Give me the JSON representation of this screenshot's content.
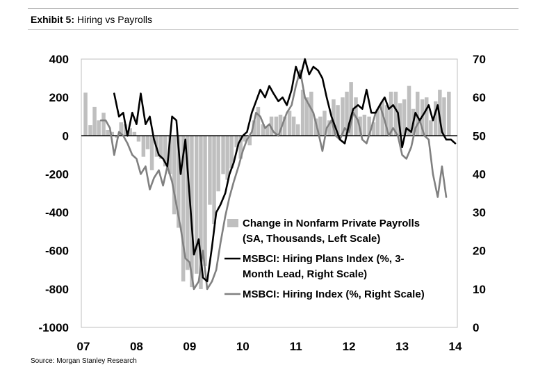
{
  "header": {
    "exhibit_label": "Exhibit 5:",
    "exhibit_title": "Hiring vs Payrolls"
  },
  "source": "Source: Morgan Stanley Research",
  "chart_data": {
    "type": "bar",
    "title": "Hiring vs Payrolls",
    "x_tick_labels": [
      "07",
      "08",
      "09",
      "10",
      "11",
      "12",
      "13",
      "14"
    ],
    "x_range": [
      2007.0,
      2014.0
    ],
    "y_left": {
      "ylim": [
        -1000,
        400
      ],
      "ticks": [
        "400",
        "200",
        "0",
        "-200",
        "-400",
        "-600",
        "-800",
        "-1000"
      ]
    },
    "y_right": {
      "ylim": [
        0,
        70
      ],
      "ticks": [
        "70",
        "60",
        "50",
        "40",
        "30",
        "20",
        "10",
        "0"
      ]
    },
    "grid": false,
    "legend_position": "bottom-right-inside",
    "colors": {
      "bars": "#bfbfbf",
      "hiring_plans": "#000000",
      "hiring_index": "#808080"
    },
    "series": [
      {
        "name": "Change in Nonfarm Private Payrolls (SA, Thousands, Left Scale)",
        "legend_lines": [
          "Change in Nonfarm Private Payrolls",
          "(SA, Thousands, Left Scale)"
        ],
        "type": "bar",
        "axis": "left",
        "x": [
          2007.04,
          2007.13,
          2007.21,
          2007.29,
          2007.38,
          2007.46,
          2007.54,
          2007.63,
          2007.71,
          2007.79,
          2007.88,
          2007.96,
          2008.04,
          2008.13,
          2008.21,
          2008.29,
          2008.38,
          2008.46,
          2008.54,
          2008.63,
          2008.71,
          2008.79,
          2008.88,
          2008.96,
          2009.04,
          2009.13,
          2009.21,
          2009.29,
          2009.38,
          2009.46,
          2009.54,
          2009.63,
          2009.71,
          2009.79,
          2009.88,
          2009.96,
          2010.04,
          2010.13,
          2010.21,
          2010.29,
          2010.38,
          2010.46,
          2010.54,
          2010.63,
          2010.71,
          2010.79,
          2010.88,
          2010.96,
          2011.04,
          2011.13,
          2011.21,
          2011.29,
          2011.38,
          2011.46,
          2011.54,
          2011.63,
          2011.71,
          2011.79,
          2011.88,
          2011.96,
          2012.04,
          2012.13,
          2012.21,
          2012.29,
          2012.38,
          2012.46,
          2012.54,
          2012.63,
          2012.71,
          2012.79,
          2012.88,
          2012.96,
          2013.04,
          2013.13,
          2013.21,
          2013.29,
          2013.38,
          2013.46,
          2013.54,
          2013.63,
          2013.71,
          2013.79,
          2013.88
        ],
        "values": [
          225,
          55,
          150,
          80,
          120,
          30,
          20,
          -10,
          70,
          60,
          40,
          20,
          -30,
          -110,
          -70,
          -180,
          -110,
          -120,
          -160,
          -200,
          -410,
          -480,
          -760,
          -700,
          -790,
          -720,
          -800,
          -680,
          -360,
          -460,
          -290,
          -200,
          -230,
          -170,
          -60,
          -120,
          -30,
          -50,
          80,
          150,
          60,
          50,
          100,
          100,
          110,
          100,
          130,
          100,
          60,
          240,
          200,
          230,
          90,
          100,
          130,
          80,
          190,
          160,
          200,
          230,
          280,
          200,
          100,
          110,
          100,
          70,
          140,
          180,
          160,
          230,
          230,
          170,
          190,
          260,
          140,
          230,
          190,
          200,
          80,
          180,
          240,
          200,
          230
        ]
      },
      {
        "name": "MSBCI: Hiring Plans Index (%, 3-Month Lead, Right Scale)",
        "legend_lines": [
          "MSBCI: Hiring Plans Index (%, 3-",
          "Month Lead, Right Scale)"
        ],
        "type": "line",
        "axis": "right",
        "x": [
          2007.58,
          2007.67,
          2007.75,
          2007.83,
          2007.92,
          2008.0,
          2008.08,
          2008.17,
          2008.25,
          2008.33,
          2008.42,
          2008.5,
          2008.58,
          2008.67,
          2008.75,
          2008.83,
          2008.92,
          2009.0,
          2009.08,
          2009.17,
          2009.25,
          2009.33,
          2009.42,
          2009.5,
          2009.58,
          2009.67,
          2009.75,
          2009.83,
          2009.92,
          2010.0,
          2010.08,
          2010.17,
          2010.25,
          2010.33,
          2010.42,
          2010.5,
          2010.58,
          2010.67,
          2010.75,
          2010.83,
          2010.92,
          2011.0,
          2011.08,
          2011.17,
          2011.25,
          2011.33,
          2011.42,
          2011.5,
          2011.58,
          2011.67,
          2011.75,
          2011.83,
          2011.92,
          2012.0,
          2012.08,
          2012.17,
          2012.25,
          2012.33,
          2012.42,
          2012.5,
          2012.58,
          2012.67,
          2012.75,
          2012.83,
          2012.92,
          2013.0,
          2013.08,
          2013.17,
          2013.25,
          2013.33,
          2013.42,
          2013.5,
          2013.58,
          2013.67,
          2013.75,
          2013.83,
          2013.92,
          2014.0
        ],
        "values": [
          61,
          55,
          56,
          50,
          56,
          53,
          61,
          53,
          55,
          49,
          45,
          44,
          42,
          55,
          54,
          40,
          49,
          34,
          19,
          23,
          13,
          12,
          21,
          30,
          32,
          35,
          40,
          43,
          48,
          50,
          51,
          56,
          59,
          62,
          60,
          63,
          61,
          59,
          60,
          58,
          62,
          68,
          65,
          70,
          66,
          68,
          67,
          65,
          60,
          55,
          52,
          49,
          48,
          53,
          57,
          58,
          57,
          62,
          56,
          56,
          58,
          60,
          57,
          58,
          56,
          47,
          52,
          51,
          56,
          54,
          56,
          58,
          54,
          58,
          51,
          49,
          49,
          48
        ]
      },
      {
        "name": "MSBCI: Hiring Index (%, Right Scale)",
        "legend_lines": [
          "MSBCI: Hiring Index (%, Right Scale)"
        ],
        "type": "line",
        "axis": "right",
        "x": [
          2007.33,
          2007.42,
          2007.5,
          2007.58,
          2007.67,
          2007.75,
          2007.83,
          2007.92,
          2008.0,
          2008.08,
          2008.17,
          2008.25,
          2008.33,
          2008.42,
          2008.5,
          2008.58,
          2008.67,
          2008.75,
          2008.83,
          2008.92,
          2009.0,
          2009.08,
          2009.17,
          2009.25,
          2009.33,
          2009.42,
          2009.5,
          2009.58,
          2009.67,
          2009.75,
          2009.83,
          2009.92,
          2010.0,
          2010.08,
          2010.17,
          2010.25,
          2010.33,
          2010.42,
          2010.5,
          2010.58,
          2010.67,
          2010.75,
          2010.83,
          2010.92,
          2011.0,
          2011.08,
          2011.17,
          2011.25,
          2011.33,
          2011.42,
          2011.5,
          2011.58,
          2011.67,
          2011.75,
          2011.83,
          2011.92,
          2012.0,
          2012.08,
          2012.17,
          2012.25,
          2012.33,
          2012.42,
          2012.5,
          2012.58,
          2012.67,
          2012.75,
          2012.83,
          2012.92,
          2013.0,
          2013.08,
          2013.17,
          2013.25,
          2013.33,
          2013.42,
          2013.5,
          2013.58,
          2013.67,
          2013.75,
          2013.83
        ],
        "values": [
          54,
          54,
          52,
          45,
          51,
          50,
          48,
          45,
          44,
          40,
          42,
          36,
          39,
          41,
          37,
          42,
          38,
          32,
          26,
          18,
          17,
          10,
          12,
          20,
          10,
          12,
          15,
          22,
          29,
          34,
          38,
          42,
          46,
          49,
          51,
          56,
          55,
          52,
          53,
          51,
          50,
          53,
          56,
          58,
          63,
          67,
          60,
          58,
          56,
          51,
          46,
          52,
          54,
          50,
          49,
          52,
          51,
          56,
          54,
          49,
          48,
          52,
          56,
          58,
          54,
          50,
          52,
          50,
          45,
          44,
          47,
          52,
          54,
          50,
          49,
          40,
          34,
          42,
          34
        ]
      }
    ]
  }
}
